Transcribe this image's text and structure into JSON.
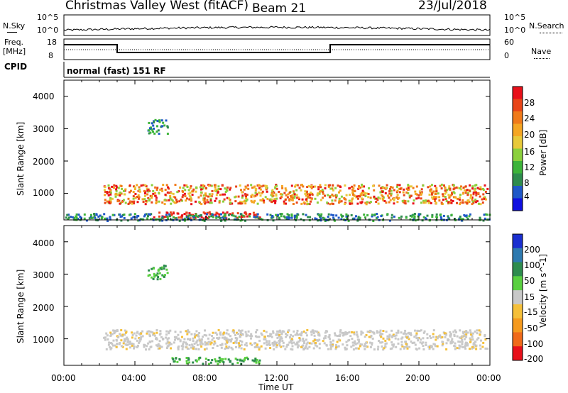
{
  "header": {
    "radar": "Christmas Valley West (fitACF)",
    "beam": "Beam 21",
    "date": "23/Jul/2018"
  },
  "noise_panel": {
    "left_label": "N.Sky",
    "right_label": "N.Search",
    "left_ticks": [
      "10^5",
      "10^0"
    ],
    "right_ticks": [
      "10^5",
      "10^0"
    ]
  },
  "freq_panel": {
    "left_label_1": "Freq.",
    "left_label_2": "[MHz]",
    "right_label": "Nave",
    "left_ticks": [
      "18",
      "8"
    ],
    "right_ticks": [
      "60",
      "0"
    ]
  },
  "cpid": {
    "label": "CPID",
    "value": "normal (fast) 151 RF"
  },
  "chart_data": [
    {
      "type": "heatmap",
      "name": "power",
      "ylabel": "Slant Range [km]",
      "xlabel": "",
      "y_ticks": [
        "1000",
        "2000",
        "3000",
        "4000"
      ],
      "ylim": [
        180,
        4500
      ],
      "xlim": [
        0,
        24
      ],
      "colorbar": {
        "label": "Power [dB]",
        "ticks": [
          "4",
          "8",
          "12",
          "16",
          "20",
          "24",
          "28"
        ],
        "colors": [
          "#1010e0",
          "#1f58c8",
          "#2e8c4e",
          "#3db43a",
          "#8bd03c",
          "#e8c93a",
          "#f5a623",
          "#f07a1a",
          "#e84518",
          "#e8101a"
        ]
      },
      "regions": [
        {
          "t0": 2.2,
          "t1": 23.9,
          "r0": 700,
          "r1": 1300,
          "level": "high"
        },
        {
          "t0": 5.0,
          "t1": 11.0,
          "r0": 250,
          "r1": 450,
          "level": "very-high"
        },
        {
          "t0": 4.7,
          "t1": 5.8,
          "r0": 2850,
          "r1": 3300,
          "level": "low"
        },
        {
          "t0": 0.0,
          "t1": 24.0,
          "r0": 180,
          "r1": 400,
          "level": "low"
        }
      ]
    },
    {
      "type": "heatmap",
      "name": "velocity",
      "ylabel": "Slant Range [km]",
      "xlabel": "Time UT",
      "x_ticks": [
        "00:00",
        "04:00",
        "08:00",
        "12:00",
        "16:00",
        "20:00",
        "00:00"
      ],
      "y_ticks": [
        "1000",
        "2000",
        "3000",
        "4000"
      ],
      "ylim": [
        180,
        4500
      ],
      "xlim": [
        0,
        24
      ],
      "colorbar": {
        "label": "Velocity [m s^-1]",
        "ticks": [
          "200",
          "100",
          "50",
          "15",
          "-15",
          "-50",
          "-100",
          "-200"
        ],
        "colors": [
          "#1a2fd0",
          "#2e7ab0",
          "#2e8c4e",
          "#5ad040",
          "#c8c8c8",
          "#f5c03a",
          "#f59a1e",
          "#f06a1a",
          "#e8101a"
        ]
      },
      "regions": [
        {
          "t0": 2.2,
          "t1": 23.9,
          "r0": 700,
          "r1": 1300,
          "level": "ground-scatter"
        },
        {
          "t0": 6.0,
          "t1": 11.0,
          "r0": 250,
          "r1": 450,
          "level": "positive"
        },
        {
          "t0": 4.7,
          "t1": 5.8,
          "r0": 2850,
          "r1": 3300,
          "level": "positive"
        }
      ]
    }
  ]
}
